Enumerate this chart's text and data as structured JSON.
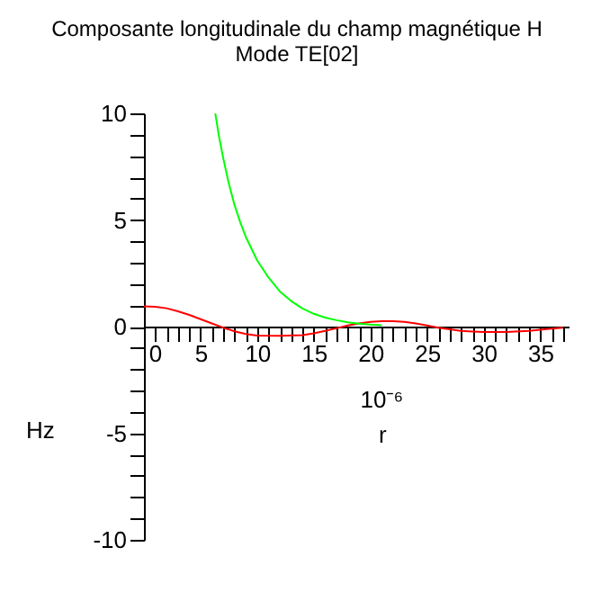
{
  "chart_data": {
    "type": "line",
    "title": "Composante longitudinale du champ magnétique H",
    "subtitle": "Mode TE[02]",
    "xlabel": "r",
    "ylabel": "Hz",
    "annotations": [
      "10⁻⁶"
    ],
    "xlim": [
      0,
      37.5
    ],
    "ylim": [
      -10,
      10
    ],
    "xticks": [
      0,
      {
        "value": 1,
        "label": null
      },
      {
        "value": 2,
        "label": null
      },
      {
        "value": 3,
        "label": null
      },
      {
        "value": 4,
        "label": null
      },
      5,
      {
        "value": 6,
        "label": null
      },
      {
        "value": 7,
        "label": null
      },
      {
        "value": 8,
        "label": null
      },
      {
        "value": 9,
        "label": null
      },
      10,
      {
        "value": 11,
        "label": null
      },
      {
        "value": 12,
        "label": null
      },
      {
        "value": 13,
        "label": null
      },
      {
        "value": 14,
        "label": null
      },
      15,
      {
        "value": 16,
        "label": null
      },
      {
        "value": 17,
        "label": null
      },
      {
        "value": 18,
        "label": null
      },
      {
        "value": 19,
        "label": null
      },
      20,
      {
        "value": 21,
        "label": null
      },
      {
        "value": 22,
        "label": null
      },
      {
        "value": 23,
        "label": null
      },
      {
        "value": 24,
        "label": null
      },
      25,
      {
        "value": 26,
        "label": null
      },
      {
        "value": 27,
        "label": null
      },
      {
        "value": 28,
        "label": null
      },
      {
        "value": 29,
        "label": null
      },
      30,
      {
        "value": 31,
        "label": null
      },
      {
        "value": 32,
        "label": null
      },
      {
        "value": 33,
        "label": null
      },
      {
        "value": 34,
        "label": null
      },
      35,
      {
        "value": 36,
        "label": null
      },
      {
        "value": 37,
        "label": null
      }
    ],
    "yticks": [
      -10,
      {
        "value": -9,
        "label": null
      },
      {
        "value": -8,
        "label": null
      },
      {
        "value": -7,
        "label": null
      },
      {
        "value": -6,
        "label": null
      },
      -5,
      {
        "value": -4,
        "label": null
      },
      {
        "value": -3,
        "label": null
      },
      {
        "value": -2,
        "label": null
      },
      {
        "value": -1,
        "label": null
      },
      0,
      {
        "value": 1,
        "label": null
      },
      {
        "value": 2,
        "label": null
      },
      {
        "value": 3,
        "label": null
      },
      {
        "value": 4,
        "label": null
      },
      5,
      {
        "value": 6,
        "label": null
      },
      {
        "value": 7,
        "label": null
      },
      {
        "value": 8,
        "label": null
      },
      {
        "value": 9,
        "label": null
      },
      10
    ],
    "grid": false,
    "series": [
      {
        "color": "#ff0000",
        "x": [
          0,
          1,
          2,
          3,
          4,
          5,
          6,
          7,
          8,
          9,
          10,
          12,
          14,
          15,
          16,
          17,
          18,
          19,
          20,
          21,
          22,
          23,
          24,
          25,
          26,
          27,
          28,
          29,
          30,
          32,
          34,
          35,
          36,
          37
        ],
        "values": [
          0.95,
          0.93,
          0.86,
          0.72,
          0.55,
          0.35,
          0.15,
          -0.05,
          -0.22,
          -0.35,
          -0.42,
          -0.43,
          -0.4,
          -0.32,
          -0.2,
          -0.08,
          0.05,
          0.15,
          0.22,
          0.25,
          0.25,
          0.22,
          0.15,
          0.05,
          -0.05,
          -0.13,
          -0.2,
          -0.23,
          -0.25,
          -0.25,
          -0.2,
          -0.15,
          -0.1,
          -0.05
        ]
      },
      {
        "color": "#00ff00",
        "x": [
          6.3,
          6.6,
          7,
          7.5,
          8,
          8.5,
          9,
          10,
          11,
          12,
          13,
          14,
          15,
          16,
          17,
          18,
          19,
          20,
          21
        ],
        "values": [
          10,
          9,
          7.9,
          6.7,
          5.7,
          4.9,
          4.2,
          3.1,
          2.3,
          1.65,
          1.2,
          0.85,
          0.6,
          0.42,
          0.3,
          0.2,
          0.14,
          0.09,
          0.06
        ]
      }
    ]
  }
}
